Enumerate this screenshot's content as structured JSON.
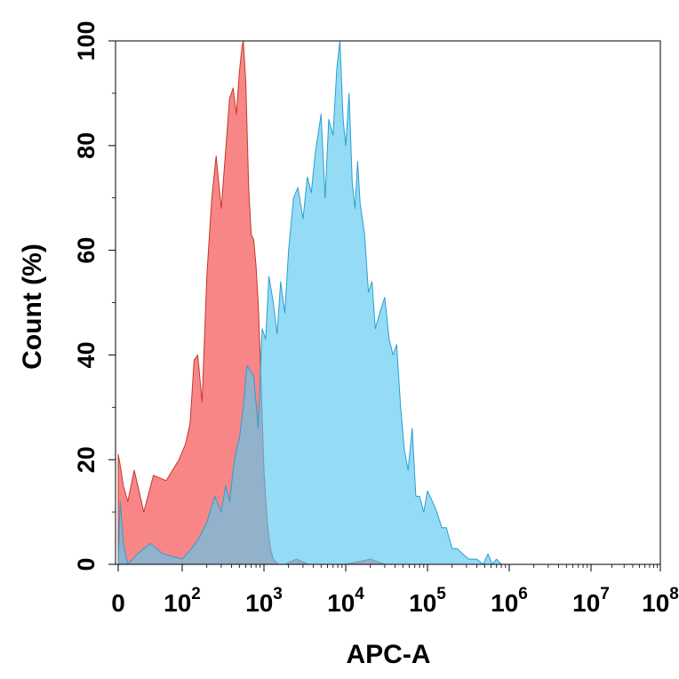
{
  "chart_data": {
    "type": "area",
    "xlabel": "APC-A",
    "ylabel": "Count  (%)",
    "xscale": "biexponential",
    "xlim": [
      -10,
      100000000
    ],
    "ylim": [
      0,
      100
    ],
    "x_ticks": [
      {
        "value": 0,
        "base": "0",
        "exp": ""
      },
      {
        "value": 100,
        "base": "10",
        "exp": "2"
      },
      {
        "value": 1000,
        "base": "10",
        "exp": "3"
      },
      {
        "value": 10000,
        "base": "10",
        "exp": "4"
      },
      {
        "value": 100000,
        "base": "10",
        "exp": "5"
      },
      {
        "value": 1000000,
        "base": "10",
        "exp": "6"
      },
      {
        "value": 10000000,
        "base": "10",
        "exp": "7"
      },
      {
        "value": 100000000,
        "base": "10",
        "exp": "8"
      }
    ],
    "y_ticks": [
      0,
      20,
      40,
      60,
      80,
      100
    ],
    "grid": false,
    "legend": "none",
    "series": [
      {
        "color": "#f87171",
        "stroke": "#c0392b",
        "x": [
          0,
          3,
          8,
          15,
          25,
          40,
          55,
          75,
          95,
          110,
          125,
          140,
          155,
          175,
          200,
          230,
          260,
          300,
          340,
          380,
          420,
          460,
          500,
          540,
          560,
          600,
          650,
          700,
          750,
          800,
          850,
          900,
          950,
          1000,
          1100,
          1200,
          1300,
          1500,
          1800,
          2500,
          3500,
          5000,
          10000,
          20000,
          30000
        ],
        "y": [
          21,
          19,
          15,
          12,
          18,
          10,
          17,
          16,
          20,
          23,
          27,
          39,
          40,
          31,
          55,
          70,
          78,
          68,
          79,
          89,
          91,
          86,
          94,
          99,
          100,
          92,
          72,
          63,
          62,
          57,
          50,
          40,
          28,
          18,
          8,
          3,
          1,
          0,
          0,
          1,
          0,
          0,
          0,
          1,
          0
        ]
      },
      {
        "color": "#5bc8f0",
        "stroke": "#2a9fd0",
        "x": [
          0,
          3,
          8,
          15,
          30,
          50,
          70,
          100,
          130,
          160,
          200,
          250,
          300,
          340,
          380,
          420,
          460,
          500,
          560,
          620,
          680,
          750,
          850,
          950,
          1050,
          1150,
          1300,
          1450,
          1600,
          1800,
          2000,
          2300,
          2600,
          3000,
          3400,
          3800,
          4200,
          5000,
          5600,
          6200,
          7000,
          7800,
          8500,
          9300,
          10000,
          11000,
          12000,
          13000,
          14000,
          15000,
          17000,
          19000,
          21000,
          23000,
          26000,
          30000,
          34000,
          38000,
          42000,
          47000,
          52000,
          58000,
          65000,
          72000,
          80000,
          90000,
          100000,
          115000,
          130000,
          150000,
          170000,
          200000,
          230000,
          270000,
          320000,
          400000,
          480000,
          550000,
          620000,
          700000,
          800000,
          1000000
        ],
        "y": [
          0,
          12,
          4,
          0,
          2,
          4,
          2,
          1,
          3,
          5,
          8,
          13,
          10,
          15,
          12,
          18,
          22,
          24,
          30,
          38,
          37,
          36,
          26,
          45,
          43,
          55,
          50,
          44,
          54,
          48,
          60,
          70,
          72,
          66,
          74,
          71,
          78,
          86,
          70,
          85,
          82,
          95,
          100,
          85,
          80,
          90,
          73,
          68,
          77,
          69,
          63,
          52,
          54,
          45,
          48,
          51,
          43,
          40,
          42,
          30,
          22,
          18,
          26,
          13,
          13,
          10,
          14,
          12,
          10,
          7,
          7,
          3,
          3,
          2,
          1,
          1,
          0,
          2,
          0,
          1,
          0,
          0
        ]
      }
    ]
  }
}
